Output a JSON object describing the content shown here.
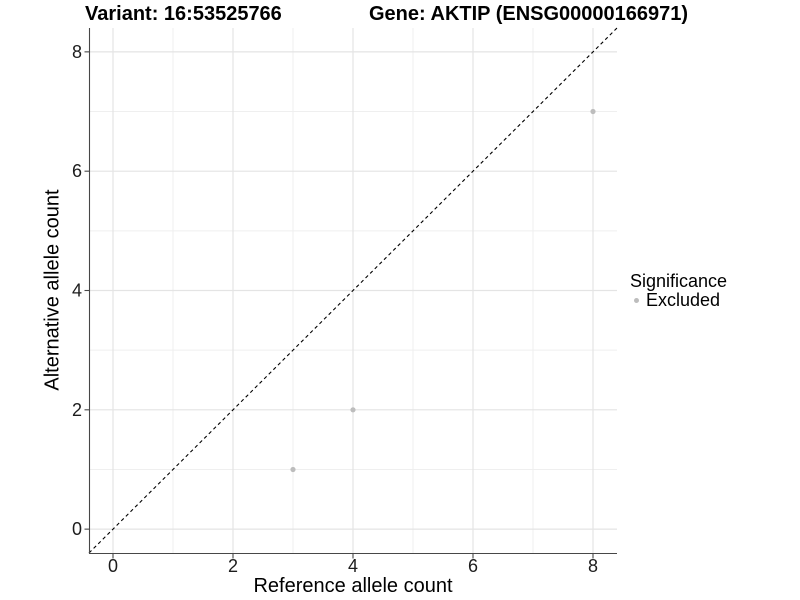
{
  "header": {
    "variant_title": "Variant: 16:53525766",
    "gene_title": "Gene: AKTIP (ENSG00000166971)"
  },
  "chart_data": {
    "type": "scatter",
    "xlabel": "Reference allele count",
    "ylabel": "Alternative allele count",
    "xlim": [
      -0.4,
      8.4
    ],
    "ylim": [
      -0.4,
      8.4
    ],
    "x_ticks": [
      0,
      2,
      4,
      6,
      8
    ],
    "y_ticks": [
      0,
      2,
      4,
      6,
      8
    ],
    "x_minor_gridlines": [
      1,
      3,
      5,
      7
    ],
    "y_minor_gridlines": [
      1,
      3,
      5,
      7
    ],
    "grid": "on",
    "series": [
      {
        "name": "Excluded",
        "color": "#bdbdbd",
        "points": [
          {
            "x": 3,
            "y": 1
          },
          {
            "x": 4,
            "y": 2
          },
          {
            "x": 8,
            "y": 7
          }
        ]
      }
    ],
    "reference_line": {
      "style": "dashed",
      "color": "#000000",
      "x1": -0.4,
      "y1": -0.4,
      "x2": 8.4,
      "y2": 8.4
    },
    "legend": {
      "title": "Significance",
      "position": "right",
      "items": [
        {
          "label": "Excluded",
          "color": "#bdbdbd",
          "marker": "circle"
        }
      ]
    },
    "colors": {
      "background": "#ffffff",
      "grid_major": "#e4e4e4",
      "grid_minor": "#efefef",
      "axis_line": "#474747",
      "tick_label": "#1c1c1c",
      "point": "#bdbdbd",
      "reference_line": "#000000"
    }
  }
}
